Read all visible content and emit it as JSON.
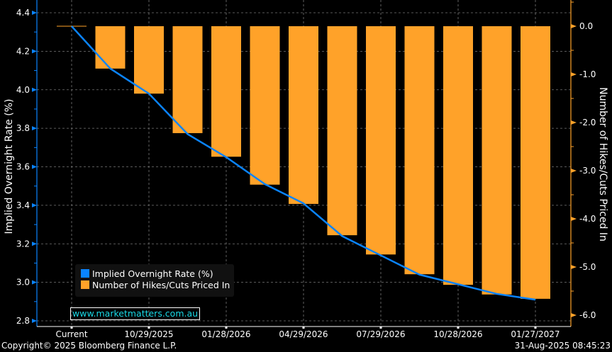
{
  "chart_data": {
    "type": "bar+line",
    "categories": [
      "Current",
      "",
      "10/29/2025",
      "",
      "01/28/2026",
      "",
      "04/29/2026",
      "",
      "07/29/2026",
      "",
      "10/28/2026",
      "",
      "01/27/2027"
    ],
    "series": [
      {
        "name": "Implied Overnight Rate (%)",
        "type": "line",
        "axis": "left",
        "color": "#0a84ff",
        "values": [
          4.33,
          4.11,
          3.98,
          3.77,
          3.65,
          3.51,
          3.41,
          3.24,
          3.14,
          3.04,
          2.99,
          2.94,
          2.91
        ]
      },
      {
        "name": "Number of Hikes/Cuts Priced In",
        "type": "bar",
        "axis": "right",
        "color": "#ffa229",
        "values": [
          0,
          -0.88,
          -1.4,
          -2.22,
          -2.71,
          -3.29,
          -3.69,
          -4.34,
          -4.74,
          -5.15,
          -5.37,
          -5.57,
          -5.66
        ]
      }
    ],
    "y_left": {
      "label": "Implied Overnight Rate (%)",
      "range": [
        2.8,
        4.4
      ],
      "ticks": [
        "2.8",
        "3.0",
        "3.2",
        "3.4",
        "3.6",
        "3.8",
        "4.0",
        "4.2",
        "4.4"
      ]
    },
    "y_right": {
      "label": "Number of Hikes/Cuts Priced In",
      "range": [
        -6.0,
        0.0
      ],
      "ticks": [
        "0.0",
        "-1.0",
        "-2.0",
        "-3.0",
        "-4.0",
        "-5.0",
        "-6.0"
      ]
    },
    "grid": true,
    "legend_position": "bottom-left"
  },
  "watermark": "www.marketmatters.com.au",
  "copyright": "Copyright© 2025 Bloomberg Finance L.P.",
  "timestamp": "31-Aug-2025 08:45:23"
}
